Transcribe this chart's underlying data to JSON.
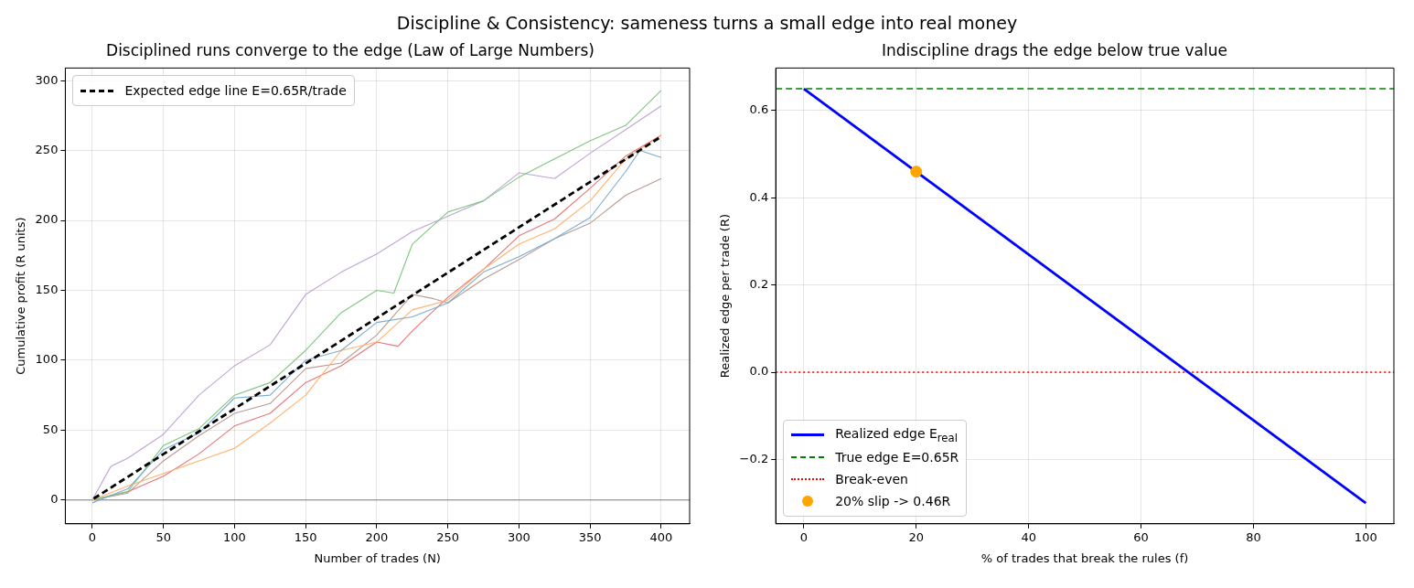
{
  "chart_data": [
    {
      "type": "line",
      "title": "Disciplined runs converge to the edge (Law of Large Numbers)",
      "xlabel": "Number of trades (N)",
      "ylabel": "Cumulative profit (R units)",
      "annotations": [
        "Discipline & Consistency: sameness turns a small edge into real money"
      ],
      "xlim": [
        -18.95,
        419.95
      ],
      "xticks": [
        0,
        50,
        100,
        150,
        200,
        250,
        300,
        350,
        400
      ],
      "ylim": [
        -17,
        309
      ],
      "yticks": [
        0,
        50,
        100,
        150,
        200,
        250,
        300
      ],
      "grid": true,
      "legend": "top left",
      "marker": "none",
      "ref_lines": [
        {
          "axis": "y",
          "value": 0,
          "color": "#808080"
        }
      ],
      "series": [
        {
          "color": "#79add2",
          "x": [
            0,
            25,
            50,
            75,
            100,
            125,
            150,
            175,
            200,
            225,
            250,
            275,
            300,
            325,
            350,
            375,
            385,
            400
          ],
          "values": [
            -2,
            8,
            36,
            48,
            73,
            75,
            100,
            107,
            127,
            131,
            141,
            163,
            174,
            187,
            202,
            235,
            250,
            245
          ]
        },
        {
          "color": "#ffb26e",
          "x": [
            0,
            25,
            50,
            75,
            100,
            125,
            150,
            175,
            200,
            225,
            250,
            275,
            300,
            325,
            350,
            375,
            400
          ],
          "values": [
            0,
            10,
            19,
            28,
            37,
            55,
            75,
            107,
            113,
            136,
            143,
            165,
            183,
            194,
            214,
            244,
            261
          ]
        },
        {
          "color": "#80c680",
          "x": [
            0,
            25,
            50,
            75,
            100,
            125,
            150,
            175,
            200,
            212,
            225,
            250,
            275,
            300,
            325,
            350,
            375,
            400
          ],
          "values": [
            0,
            6,
            39,
            51,
            75,
            84,
            107,
            134,
            150,
            148,
            183,
            206,
            214,
            231,
            244,
            257,
            268,
            293
          ]
        },
        {
          "color": "#e67677",
          "x": [
            0,
            25,
            50,
            75,
            100,
            125,
            150,
            175,
            200,
            215,
            225,
            250,
            275,
            300,
            325,
            350,
            375,
            400
          ],
          "values": [
            0,
            6,
            17,
            33,
            53,
            62,
            84,
            96,
            113,
            110,
            121,
            145,
            165,
            189,
            201,
            223,
            246,
            261
          ]
        },
        {
          "color": "#bfa4d7",
          "x": [
            0,
            13,
            25,
            50,
            75,
            100,
            125,
            150,
            175,
            200,
            225,
            250,
            275,
            300,
            325,
            350,
            375,
            400
          ],
          "values": [
            0,
            24,
            30,
            47,
            75,
            96,
            111,
            147,
            163,
            176,
            192,
            203,
            214,
            234,
            230,
            248,
            265,
            282
          ]
        },
        {
          "color": "#ba9a93",
          "x": [
            0,
            25,
            50,
            75,
            100,
            125,
            150,
            175,
            200,
            225,
            240,
            250,
            275,
            300,
            325,
            350,
            375,
            400
          ],
          "values": [
            0,
            5,
            28,
            46,
            62,
            69,
            94,
            98,
            118,
            147,
            144,
            141,
            158,
            172,
            187,
            198,
            218,
            230
          ]
        },
        {
          "name": "Expected edge line  E=0.65R/trade",
          "color": "#000000",
          "line_style": "dashed",
          "x": [
            1,
            400
          ],
          "values": [
            1,
            260
          ]
        }
      ]
    },
    {
      "type": "line",
      "title": "Indiscipline drags the edge below true value",
      "xlabel": "% of trades that break the rules (f)",
      "ylabel": "Realized edge per trade (R)",
      "xlim": [
        -5,
        105
      ],
      "xticks": [
        0,
        20,
        40,
        60,
        80,
        100
      ],
      "ylim": [
        -0.3475,
        0.6975
      ],
      "yticks": [
        {
          "value": -0.2,
          "label": "−0.2"
        },
        {
          "value": 0,
          "label": "0.0"
        },
        0.2,
        0.4,
        0.6
      ],
      "grid": true,
      "legend": "bottom left",
      "ref_lines": [
        {
          "axis": "y",
          "value": 0.65,
          "label": "True edge E=0.65R",
          "color": "#008000",
          "line_style": "dashed"
        },
        {
          "axis": "y",
          "value": 0,
          "label": "Break-even",
          "color": "#ff0000",
          "line_style": "dotted"
        }
      ],
      "series": [
        {
          "name": "Realized edge E$_{real}$",
          "color": "#0000ff",
          "x": [
            0,
            100
          ],
          "values": [
            0.65,
            -0.3
          ]
        },
        {
          "type": "scatter",
          "name": "20% slip -> 0.46R",
          "color": "#ffa500",
          "marker": "circle",
          "x": [
            20
          ],
          "values": [
            0.46
          ]
        }
      ]
    }
  ]
}
